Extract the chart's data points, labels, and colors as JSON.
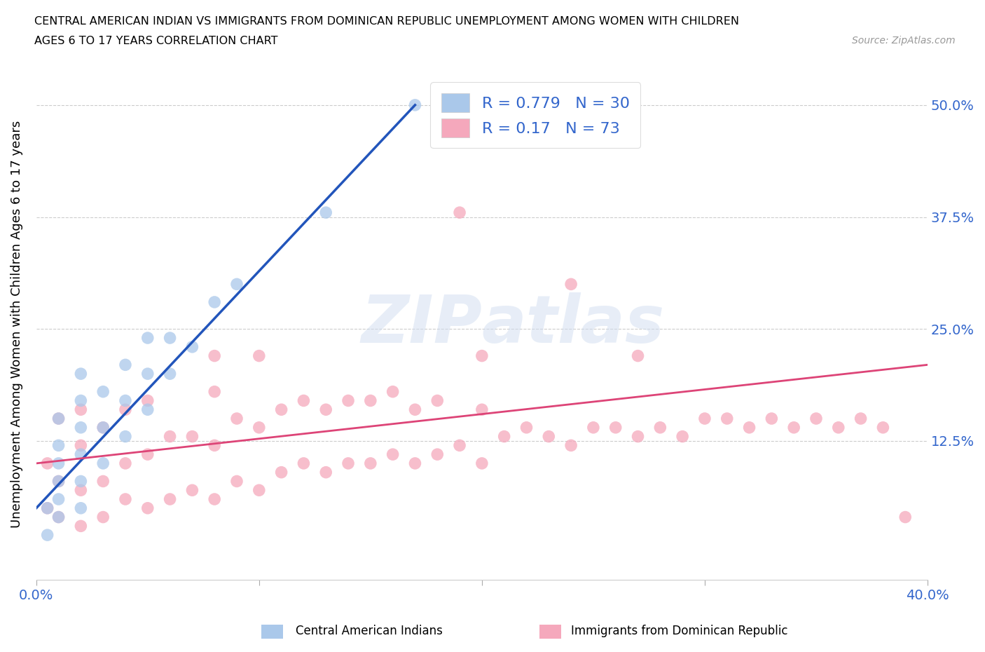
{
  "title_line1": "CENTRAL AMERICAN INDIAN VS IMMIGRANTS FROM DOMINICAN REPUBLIC UNEMPLOYMENT AMONG WOMEN WITH CHILDREN",
  "title_line2": "AGES 6 TO 17 YEARS CORRELATION CHART",
  "source": "Source: ZipAtlas.com",
  "ylabel": "Unemployment Among Women with Children Ages 6 to 17 years",
  "xlim": [
    0.0,
    0.4
  ],
  "ylim": [
    -0.03,
    0.54
  ],
  "ytick_positions": [
    0.0,
    0.125,
    0.25,
    0.375,
    0.5
  ],
  "ytick_labels": [
    "",
    "12.5%",
    "25.0%",
    "37.5%",
    "50.0%"
  ],
  "blue_R": 0.779,
  "blue_N": 30,
  "pink_R": 0.17,
  "pink_N": 73,
  "blue_color": "#aac8ea",
  "pink_color": "#f5a8bc",
  "blue_line_color": "#2255bb",
  "pink_line_color": "#dd4477",
  "legend_label_blue": "Central American Indians",
  "legend_label_pink": "Immigrants from Dominican Republic",
  "blue_scatter_x": [
    0.005,
    0.005,
    0.01,
    0.01,
    0.01,
    0.01,
    0.01,
    0.01,
    0.02,
    0.02,
    0.02,
    0.02,
    0.02,
    0.02,
    0.03,
    0.03,
    0.03,
    0.04,
    0.04,
    0.04,
    0.05,
    0.05,
    0.05,
    0.06,
    0.06,
    0.07,
    0.08,
    0.09,
    0.13,
    0.17
  ],
  "blue_scatter_y": [
    0.02,
    0.05,
    0.04,
    0.06,
    0.08,
    0.1,
    0.12,
    0.15,
    0.05,
    0.08,
    0.11,
    0.14,
    0.17,
    0.2,
    0.1,
    0.14,
    0.18,
    0.13,
    0.17,
    0.21,
    0.16,
    0.2,
    0.24,
    0.2,
    0.24,
    0.23,
    0.28,
    0.3,
    0.38,
    0.5
  ],
  "pink_scatter_x": [
    0.005,
    0.005,
    0.01,
    0.01,
    0.01,
    0.02,
    0.02,
    0.02,
    0.02,
    0.03,
    0.03,
    0.03,
    0.04,
    0.04,
    0.04,
    0.05,
    0.05,
    0.05,
    0.06,
    0.06,
    0.07,
    0.07,
    0.08,
    0.08,
    0.08,
    0.09,
    0.09,
    0.1,
    0.1,
    0.11,
    0.11,
    0.12,
    0.12,
    0.13,
    0.13,
    0.14,
    0.14,
    0.15,
    0.15,
    0.16,
    0.16,
    0.17,
    0.17,
    0.18,
    0.18,
    0.19,
    0.2,
    0.2,
    0.21,
    0.22,
    0.23,
    0.24,
    0.25,
    0.26,
    0.27,
    0.28,
    0.29,
    0.3,
    0.31,
    0.32,
    0.33,
    0.34,
    0.35,
    0.36,
    0.37,
    0.38,
    0.19,
    0.08,
    0.1,
    0.2,
    0.24,
    0.27,
    0.39
  ],
  "pink_scatter_y": [
    0.05,
    0.1,
    0.04,
    0.08,
    0.15,
    0.03,
    0.07,
    0.12,
    0.16,
    0.04,
    0.08,
    0.14,
    0.06,
    0.1,
    0.16,
    0.05,
    0.11,
    0.17,
    0.06,
    0.13,
    0.07,
    0.13,
    0.06,
    0.12,
    0.18,
    0.08,
    0.15,
    0.07,
    0.14,
    0.09,
    0.16,
    0.1,
    0.17,
    0.09,
    0.16,
    0.1,
    0.17,
    0.1,
    0.17,
    0.11,
    0.18,
    0.1,
    0.16,
    0.11,
    0.17,
    0.12,
    0.1,
    0.16,
    0.13,
    0.14,
    0.13,
    0.12,
    0.14,
    0.14,
    0.13,
    0.14,
    0.13,
    0.15,
    0.15,
    0.14,
    0.15,
    0.14,
    0.15,
    0.14,
    0.15,
    0.14,
    0.38,
    0.22,
    0.22,
    0.22,
    0.3,
    0.22,
    0.04
  ],
  "blue_line_x": [
    0.0,
    0.17
  ],
  "blue_line_y": [
    0.05,
    0.5
  ],
  "pink_line_x": [
    0.0,
    0.4
  ],
  "pink_line_y": [
    0.1,
    0.21
  ]
}
